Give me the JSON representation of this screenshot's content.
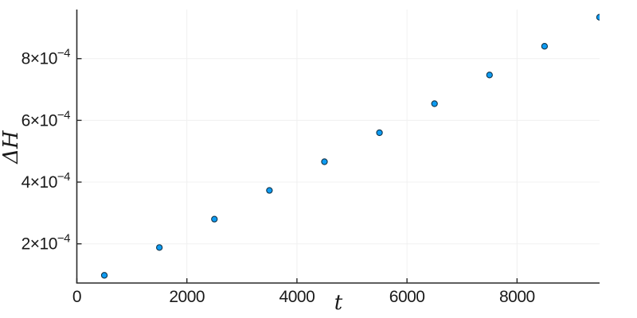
{
  "chart_data": {
    "type": "scatter",
    "title": "",
    "xlabel": "t",
    "ylabel": "ΔH",
    "x": [
      500,
      1500,
      2500,
      3500,
      4500,
      5500,
      6500,
      7500,
      8500,
      9500
    ],
    "y": [
      9.8e-05,
      0.000188,
      0.00028,
      0.000373,
      0.000466,
      0.00056,
      0.000654,
      0.000747,
      0.00084,
      0.000934
    ],
    "xlim": [
      0,
      9500
    ],
    "ylim": [
      7.3e-05,
      0.000959
    ],
    "x_ticks": [
      {
        "value": 0,
        "label": "0"
      },
      {
        "value": 2000,
        "label": "2000"
      },
      {
        "value": 4000,
        "label": "4000"
      },
      {
        "value": 6000,
        "label": "6000"
      },
      {
        "value": 8000,
        "label": "8000"
      }
    ],
    "y_ticks": [
      {
        "value": 0.0002,
        "mantissa": "2×10",
        "exponent": "−4"
      },
      {
        "value": 0.0004,
        "mantissa": "4×10",
        "exponent": "−4"
      },
      {
        "value": 0.0006,
        "mantissa": "6×10",
        "exponent": "−4"
      },
      {
        "value": 0.0008,
        "mantissa": "8×10",
        "exponent": "−4"
      }
    ],
    "grid": true,
    "legend": "none",
    "colors": {
      "marker_fill": "#0d9bf2",
      "marker_stroke": "#12344a",
      "axis": "#2a2a2a",
      "grid": "#f0f0f0",
      "background": "#ffffff",
      "tick_text": "#1a1a1a"
    }
  }
}
